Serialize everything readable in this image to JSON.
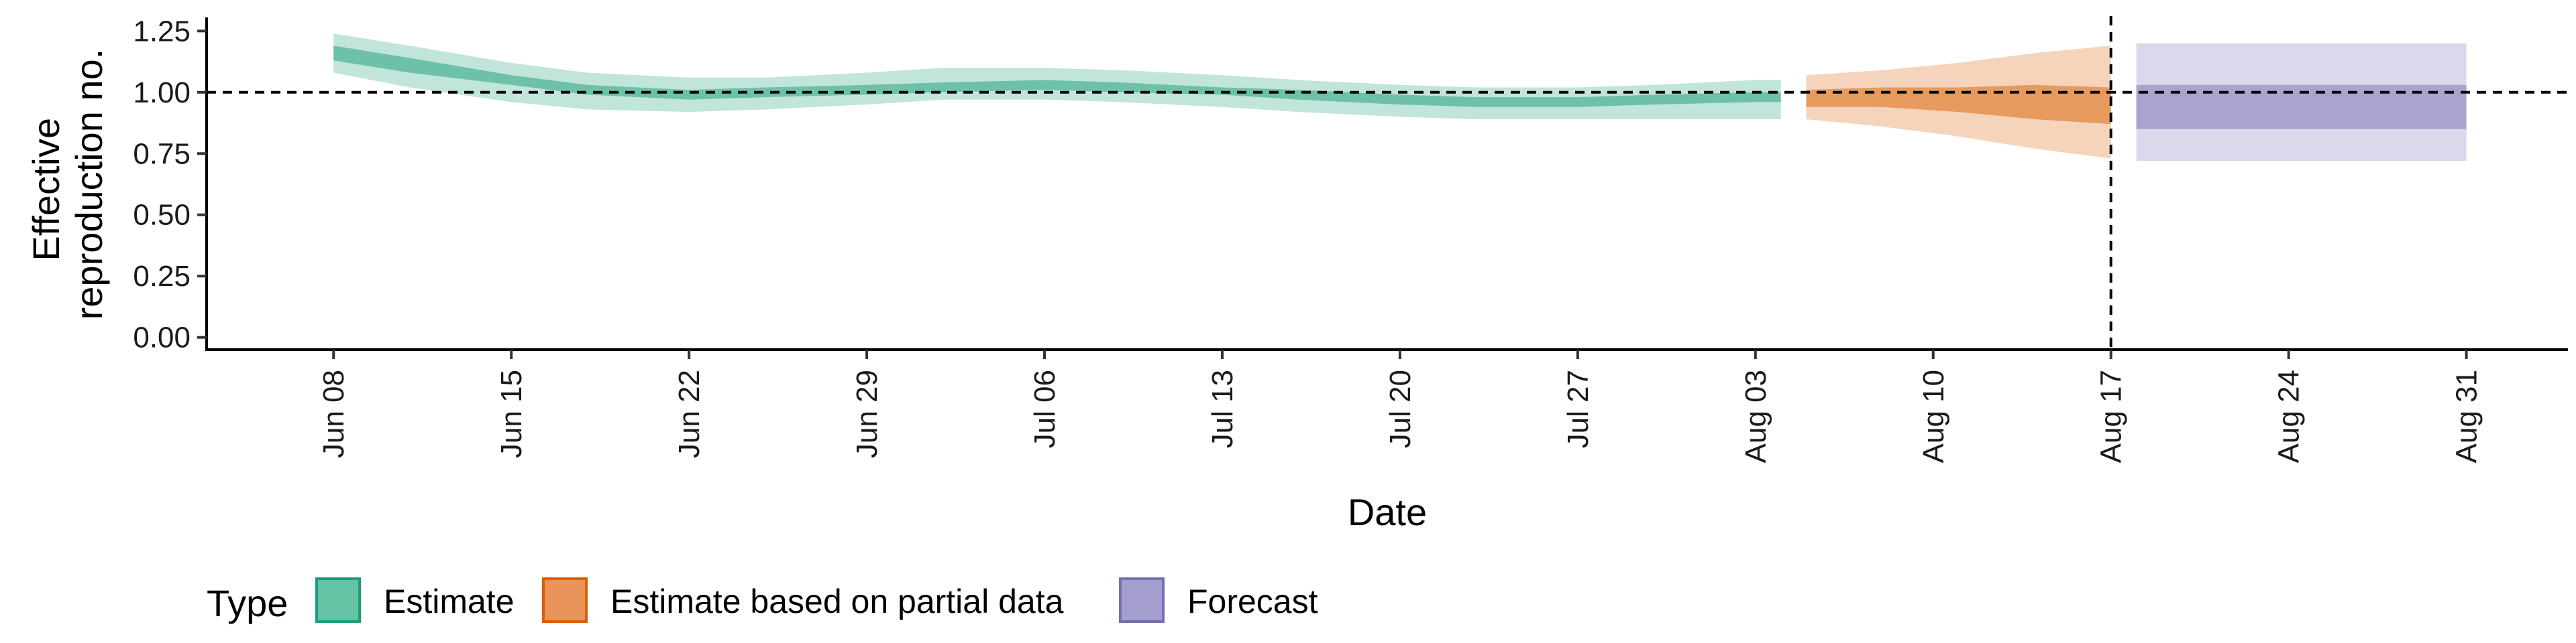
{
  "chart_data": {
    "type": "area",
    "title": "",
    "xlabel": "Date",
    "ylabel_lines": [
      "Effective",
      "reproduction no."
    ],
    "x_range": [
      "2020-06-03",
      "2020-09-04"
    ],
    "ylim": [
      -0.05,
      1.3
    ],
    "y_ticks": [
      0,
      0.25,
      0.5,
      0.75,
      1,
      1.25
    ],
    "y_tick_labels": [
      "0.00",
      "0.25",
      "0.50",
      "0.75",
      "1.00",
      "1.25"
    ],
    "x_ticks": [
      "2020-06-08",
      "2020-06-15",
      "2020-06-22",
      "2020-06-29",
      "2020-07-06",
      "2020-07-13",
      "2020-07-20",
      "2020-07-27",
      "2020-08-03",
      "2020-08-10",
      "2020-08-17",
      "2020-08-24",
      "2020-08-31"
    ],
    "x_tick_labels": [
      "Jun 08",
      "Jun 15",
      "Jun 22",
      "Jun 29",
      "Jul 06",
      "Jul 13",
      "Jul 20",
      "Jul 27",
      "Aug 03",
      "Aug 10",
      "Aug 17",
      "Aug 24",
      "Aug 31"
    ],
    "hline": 1.0,
    "vline": "2020-08-17",
    "grid": false,
    "legend": {
      "title": "Type",
      "position": "bottom-left",
      "entries": [
        {
          "label": "Estimate",
          "fill": "#66c2a5",
          "stroke": "#1b9e77"
        },
        {
          "label": "Estimate based on partial data",
          "fill": "#e8945a",
          "stroke": "#d95f02"
        },
        {
          "label": "Forecast",
          "fill": "#a59fcf",
          "stroke": "#7570b3"
        }
      ]
    },
    "series": [
      {
        "type_label": "Estimate",
        "color": "#1b9e77",
        "x": [
          "2020-06-08",
          "2020-06-11",
          "2020-06-15",
          "2020-06-18",
          "2020-06-22",
          "2020-06-25",
          "2020-06-29",
          "2020-07-02",
          "2020-07-06",
          "2020-07-09",
          "2020-07-13",
          "2020-07-16",
          "2020-07-20",
          "2020-07-23",
          "2020-07-27",
          "2020-07-30",
          "2020-08-03",
          "2020-08-04"
        ],
        "lower90": [
          1.08,
          1.02,
          0.96,
          0.93,
          0.92,
          0.93,
          0.95,
          0.97,
          0.97,
          0.96,
          0.94,
          0.92,
          0.9,
          0.89,
          0.89,
          0.89,
          0.89,
          0.89
        ],
        "lower50": [
          1.13,
          1.08,
          1.03,
          0.99,
          0.97,
          0.98,
          0.99,
          1.0,
          1.01,
          1.0,
          0.99,
          0.97,
          0.95,
          0.94,
          0.94,
          0.95,
          0.96,
          0.96
        ],
        "upper50": [
          1.19,
          1.14,
          1.07,
          1.03,
          1.01,
          1.02,
          1.03,
          1.04,
          1.05,
          1.04,
          1.02,
          1.01,
          0.99,
          0.98,
          0.98,
          0.99,
          1.0,
          1.0
        ],
        "upper90": [
          1.24,
          1.19,
          1.12,
          1.08,
          1.06,
          1.06,
          1.08,
          1.1,
          1.1,
          1.09,
          1.07,
          1.05,
          1.03,
          1.02,
          1.02,
          1.03,
          1.05,
          1.05
        ]
      },
      {
        "type_label": "Estimate based on partial data",
        "color": "#d95f02",
        "x": [
          "2020-08-05",
          "2020-08-08",
          "2020-08-11",
          "2020-08-14",
          "2020-08-17"
        ],
        "lower90": [
          0.89,
          0.86,
          0.82,
          0.77,
          0.73
        ],
        "lower50": [
          0.94,
          0.94,
          0.92,
          0.89,
          0.87
        ],
        "upper50": [
          1.01,
          1.02,
          1.02,
          1.03,
          1.02
        ],
        "upper90": [
          1.07,
          1.09,
          1.12,
          1.16,
          1.19
        ]
      },
      {
        "type_label": "Forecast",
        "color": "#7570b3",
        "x": [
          "2020-08-18",
          "2020-08-31"
        ],
        "lower90": [
          0.72,
          0.72
        ],
        "lower50": [
          0.85,
          0.85
        ],
        "upper50": [
          1.03,
          1.03
        ],
        "upper90": [
          1.2,
          1.2
        ]
      }
    ]
  }
}
